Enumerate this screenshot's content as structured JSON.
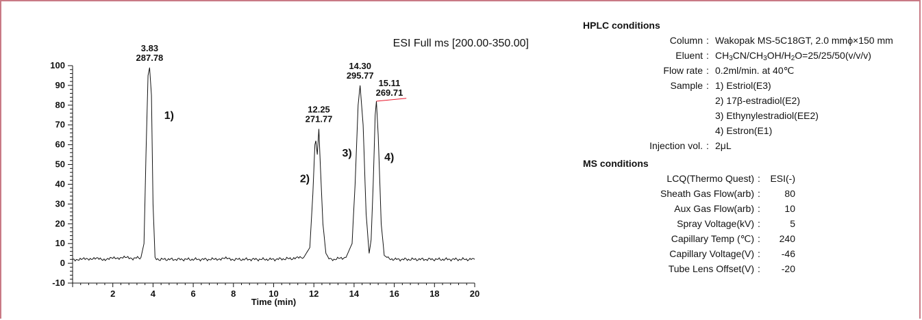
{
  "chart_data": {
    "type": "line",
    "title": "ESI Full ms [200.00-350.00]",
    "xlabel": "Time (min)",
    "ylabel": "",
    "xlim": [
      0,
      20
    ],
    "ylim": [
      -10,
      100
    ],
    "x_ticks": [
      "2",
      "4",
      "6",
      "8",
      "10",
      "12",
      "14",
      "16",
      "18",
      "20"
    ],
    "y_ticks": [
      "-10",
      "0",
      "10",
      "20",
      "30",
      "40",
      "50",
      "60",
      "70",
      "80",
      "90",
      "100"
    ],
    "series": [
      {
        "x": [
          0.0,
          0.5,
          1.0,
          1.5,
          2.0,
          2.5,
          3.0,
          3.4,
          3.55,
          3.65,
          3.75,
          3.83,
          3.92,
          4.0,
          4.1,
          4.3,
          5.0,
          6.0,
          7.0,
          7.5,
          8.0,
          9.0,
          10.0,
          11.0,
          11.5,
          11.8,
          11.95,
          12.05,
          12.1,
          12.17,
          12.25,
          12.32,
          12.45,
          12.6,
          12.75,
          13.0,
          13.6,
          13.9,
          14.05,
          14.2,
          14.3,
          14.45,
          14.6,
          14.75,
          14.85,
          14.95,
          15.05,
          15.11,
          15.2,
          15.35,
          15.5,
          15.7,
          16.0,
          17.0,
          18.0,
          19.0,
          20.0
        ],
        "y": [
          2,
          2,
          2.5,
          2,
          2.5,
          3,
          2.5,
          3,
          10,
          55,
          95,
          99,
          85,
          30,
          3,
          2,
          2,
          2,
          2,
          2.5,
          2,
          2,
          2,
          2.5,
          3,
          8,
          35,
          60,
          62,
          55,
          68,
          50,
          20,
          5,
          2.5,
          2,
          3,
          10,
          40,
          80,
          90,
          70,
          25,
          5,
          12,
          40,
          75,
          82,
          65,
          20,
          4,
          2.5,
          2,
          2,
          2,
          2,
          2
        ]
      }
    ],
    "peak_annotations": [
      {
        "time": "3.83",
        "mz": "287.78",
        "x": 3.83,
        "y": 99
      },
      {
        "time": "12.25",
        "mz": "271.77",
        "x": 12.25,
        "y": 68
      },
      {
        "time": "14.30",
        "mz": "295.77",
        "x": 14.3,
        "y": 90
      },
      {
        "time": "15.11",
        "mz": "269.71",
        "x": 15.11,
        "y": 82
      }
    ],
    "peak_numbers": [
      {
        "label": "1)",
        "x": 4.8,
        "y": 73
      },
      {
        "label": "2)",
        "x": 11.55,
        "y": 41
      },
      {
        "label": "3)",
        "x": 13.65,
        "y": 54
      },
      {
        "label": "4)",
        "x": 15.75,
        "y": 52
      }
    ],
    "colors": {
      "line": "#111111",
      "marker_line": "#e8152a",
      "frame": "#c97a85"
    }
  },
  "hplc": {
    "heading": "HPLC conditions",
    "rows": [
      {
        "label": "Column",
        "colon": ":",
        "value": "Wakopak MS-5C18GT, 2.0 mmϕ×150 mm"
      },
      {
        "label": "Eluent",
        "colon": ":",
        "value_parts": [
          "CH",
          "3",
          "CN/CH",
          "3",
          "OH/H",
          "2",
          "O=25/25/50(v/v/v)"
        ]
      },
      {
        "label": "Flow rate",
        "colon": ":",
        "value": "0.2ml/min. at 40℃"
      },
      {
        "label": "Sample",
        "colon": ":",
        "value": "1) Estriol(E3)"
      },
      {
        "label": "",
        "colon": "",
        "value": "2) 17β-estradiol(E2)"
      },
      {
        "label": "",
        "colon": "",
        "value": "3) Ethynylestradiol(EE2)"
      },
      {
        "label": "",
        "colon": "",
        "value": "4) Estron(E1)"
      },
      {
        "label": "Injection vol.",
        "colon": ":",
        "value": "2μL"
      }
    ]
  },
  "ms": {
    "heading": "MS conditions",
    "rows": [
      {
        "label": "LCQ(Thermo Quest)",
        "colon": ":",
        "value": "ESI(-)"
      },
      {
        "label": "Sheath Gas Flow(arb)",
        "colon": ":",
        "value": "80"
      },
      {
        "label": "Aux Gas Flow(arb)",
        "colon": ":",
        "value": "10"
      },
      {
        "label": "Spray Voltage(kV)",
        "colon": ":",
        "value": "5"
      },
      {
        "label": "Capillary Temp (℃)",
        "colon": ":",
        "value": "240"
      },
      {
        "label": "Capillary Voltage(V)",
        "colon": ":",
        "value": "-46"
      },
      {
        "label": "Tube Lens Offset(V)",
        "colon": ":",
        "value": "-20"
      }
    ]
  }
}
